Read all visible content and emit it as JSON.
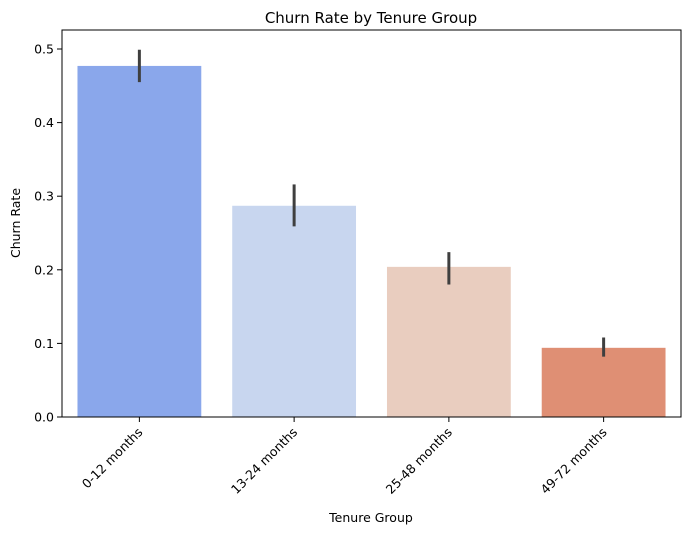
{
  "chart_data": {
    "type": "bar",
    "title": "Churn Rate by Tenure Group",
    "xlabel": "Tenure Group",
    "ylabel": "Churn Rate",
    "categories": [
      "0-12 months",
      "13-24 months",
      "25-48 months",
      "49-72 months"
    ],
    "values": [
      0.477,
      0.287,
      0.204,
      0.094
    ],
    "error_low": [
      0.455,
      0.259,
      0.18,
      0.082
    ],
    "error_high": [
      0.499,
      0.316,
      0.224,
      0.108
    ],
    "colors": [
      "#8aa7eb",
      "#c8d6ef",
      "#e9cdbf",
      "#df8f74"
    ],
    "ylim": [
      0,
      0.5
    ],
    "yticks": [
      "0.0",
      "0.1",
      "0.2",
      "0.3",
      "0.4",
      "0.5"
    ],
    "ytick_values": [
      0,
      0.1,
      0.2,
      0.3,
      0.4,
      0.5
    ],
    "grid": false,
    "legend": "none"
  }
}
